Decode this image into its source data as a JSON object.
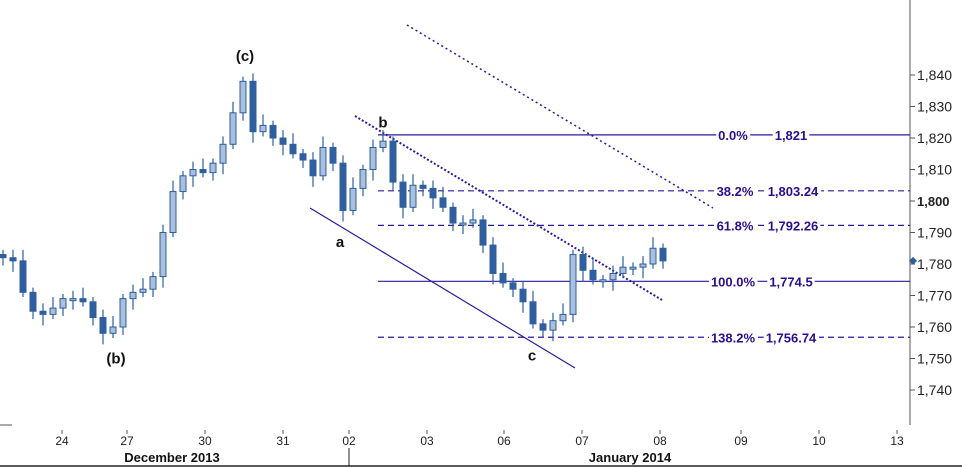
{
  "chart_data": {
    "type": "candlestick",
    "title": "",
    "xlabel": "",
    "ylabel": "",
    "ylim": [
      1735,
      1864
    ],
    "grid": false,
    "y_ticks": [
      "1,740",
      "1,750",
      "1,760",
      "1,770",
      "1,780",
      "1,790",
      "1,800",
      "1,810",
      "1,820",
      "1,830",
      "1,840"
    ],
    "y_tick_values": [
      1740,
      1750,
      1760,
      1770,
      1780,
      1790,
      1800,
      1810,
      1820,
      1830,
      1840
    ],
    "y_bold_tick": 1800,
    "x_ticks": [
      "24",
      "27",
      "30",
      "31",
      "02",
      "03",
      "06",
      "07",
      "08",
      "09",
      "10",
      "13"
    ],
    "months": [
      "December 2013",
      "January 2014"
    ],
    "close": [
      1782,
      1781,
      1771,
      1765,
      1764,
      1766,
      1769,
      1769,
      1768,
      1763,
      1758,
      1760,
      1769,
      1771,
      1772,
      1776,
      1790,
      1803,
      1808,
      1810,
      1809,
      1812,
      1818,
      1828,
      1838,
      1822,
      1824,
      1820,
      1818,
      1815,
      1813,
      1808,
      1817,
      1812,
      1797,
      1804,
      1810,
      1817,
      1819,
      1806,
      1798,
      1805,
      1804,
      1801,
      1798,
      1793,
      1793,
      1794,
      1786,
      1777,
      1774,
      1772,
      1768,
      1761,
      1759,
      1762,
      1764,
      1783,
      1778,
      1775,
      1775,
      1777,
      1779,
      1779,
      1780,
      1785,
      1781
    ],
    "current_price": 1781,
    "fibonacci": [
      {
        "level": "0.0%",
        "price": "1,821",
        "value": 1821,
        "style": "solid"
      },
      {
        "level": "38.2%",
        "price": "1,803.24",
        "value": 1803.24,
        "style": "dashed"
      },
      {
        "level": "61.8%",
        "price": "1,792.26",
        "value": 1792.26,
        "style": "dashed"
      },
      {
        "level": "100.0%",
        "price": "1,774.5",
        "value": 1774.5,
        "style": "solid"
      },
      {
        "level": "138.2%",
        "price": "1,756.74",
        "value": 1756.74,
        "style": "dashed"
      }
    ],
    "wave_labels": [
      {
        "text": "(c)",
        "value": 1846
      },
      {
        "text": "(b)",
        "value": 1750
      },
      {
        "text": "a",
        "value": 1787
      },
      {
        "text": "b",
        "value": 1825
      },
      {
        "text": "c",
        "value": 1751
      }
    ],
    "colors": {
      "candle": "#2f5f9e",
      "candle_up_fill": "#a9bfdc",
      "lines": "#2a1a9c",
      "fib_text": "#2a0f8c"
    }
  }
}
